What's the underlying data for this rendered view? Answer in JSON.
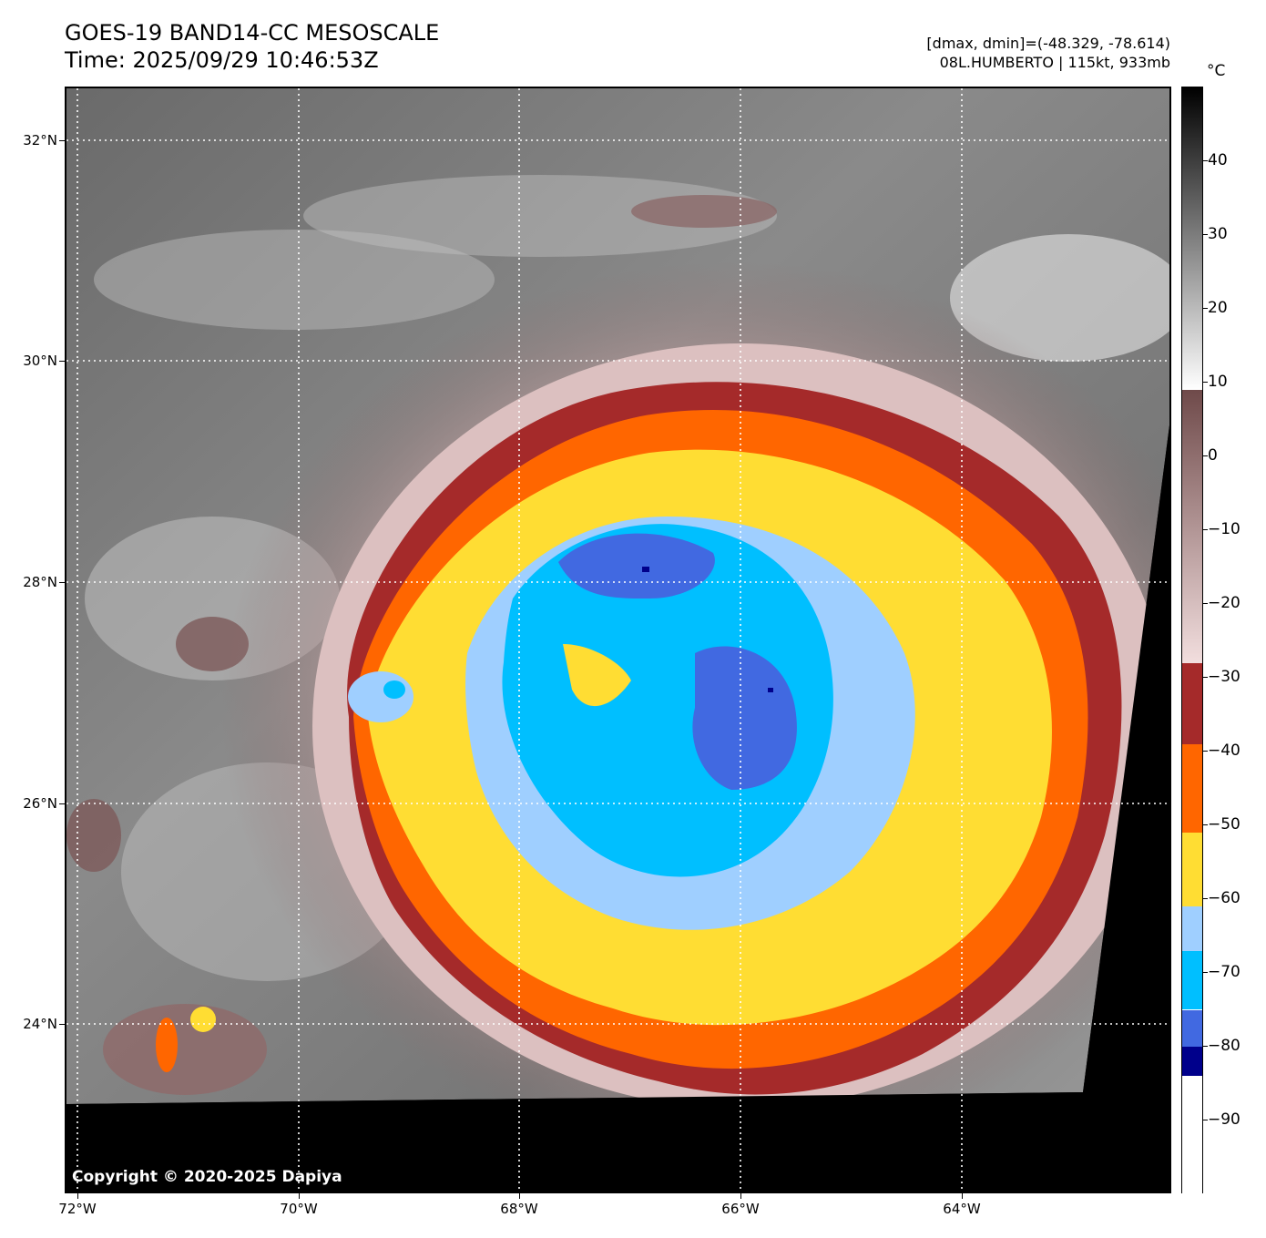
{
  "header": {
    "title_line1": "GOES-19 BAND14-CC MESOSCALE",
    "title_line2": "Time: 2025/09/29 10:46:53Z",
    "info_line1": "[dmax, dmin]=(-48.329, -78.614)",
    "info_line2": "08L.HUMBERTO | 115kt, 933mb"
  },
  "map": {
    "copyright": "Copyright © 2020-2025 Dapiya",
    "lat_labels": [
      "32°N",
      "30°N",
      "28°N",
      "26°N",
      "24°N"
    ],
    "lon_labels": [
      "72°W",
      "70°W",
      "68°W",
      "66°W",
      "64°W"
    ],
    "grid_style": "dotted-white",
    "no_data_color": "#000000"
  },
  "colorbar": {
    "unit": "°C",
    "ticks": [
      "40",
      "30",
      "20",
      "10",
      "0",
      "−10",
      "−20",
      "−30",
      "−40",
      "−50",
      "−60",
      "−70",
      "−80",
      "−90"
    ],
    "range_c": [
      -100,
      50
    ],
    "bands": [
      {
        "from": 50,
        "to": 9,
        "gradient": [
          "#000000",
          "#ffffff"
        ]
      },
      {
        "from": 9,
        "to": -28,
        "gradient": [
          "#6f4a4a",
          "#f2dede"
        ]
      },
      {
        "from": -28,
        "to": -39,
        "color": "#a52a2a"
      },
      {
        "from": -39,
        "to": -51,
        "color": "#ff6600"
      },
      {
        "from": -51,
        "to": -61,
        "color": "#ffdd33"
      },
      {
        "from": -61,
        "to": -67,
        "color": "#9fcfff"
      },
      {
        "from": -67,
        "to": -75,
        "color": "#00bfff"
      },
      {
        "from": -75,
        "to": -80,
        "color": "#4169e1"
      },
      {
        "from": -80,
        "to": -84,
        "color": "#00008b"
      },
      {
        "from": -84,
        "to": -100,
        "color": "#ffffff"
      }
    ]
  }
}
